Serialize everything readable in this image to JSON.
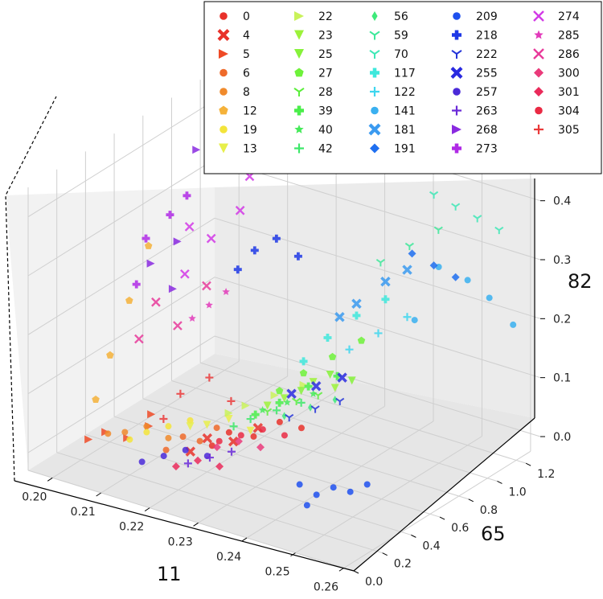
{
  "chart_data": {
    "type": "scatter",
    "projection": "3d",
    "title": "",
    "xlabel": "11",
    "ylabel": "65",
    "zlabel": "82",
    "xlim": [
      0.195,
      0.262
    ],
    "ylim": [
      0.0,
      1.3
    ],
    "zlim": [
      -0.03,
      0.45
    ],
    "xticks": [
      "0.20",
      "0.21",
      "0.22",
      "0.23",
      "0.24",
      "0.25",
      "0.26"
    ],
    "yticks": [
      "0.0",
      "0.2",
      "0.4",
      "0.6",
      "0.8",
      "1.0",
      "1.2"
    ],
    "zticks": [
      "0.0",
      "0.1",
      "0.2",
      "0.3",
      "0.4"
    ],
    "grid": true,
    "legend_position": "top-right",
    "series": [
      {
        "name": "0",
        "color": "#e8312a",
        "marker": "circle",
        "points": [
          [
            0.226,
            0.35,
            0.06
          ],
          [
            0.229,
            0.42,
            0.05
          ],
          [
            0.232,
            0.5,
            0.07
          ],
          [
            0.224,
            0.3,
            0.04
          ],
          [
            0.235,
            0.55,
            0.06
          ]
        ]
      },
      {
        "name": "4",
        "color": "#e8312a",
        "marker": "x-filled",
        "points": [
          [
            0.223,
            0.3,
            0.05
          ],
          [
            0.226,
            0.38,
            0.04
          ],
          [
            0.229,
            0.45,
            0.06
          ],
          [
            0.221,
            0.25,
            0.03
          ]
        ]
      },
      {
        "name": "5",
        "color": "#ef4a26",
        "marker": "triangle-right",
        "points": [
          [
            0.205,
            0.2,
            0.03
          ],
          [
            0.208,
            0.25,
            0.02
          ],
          [
            0.211,
            0.3,
            0.04
          ],
          [
            0.203,
            0.15,
            0.02
          ],
          [
            0.21,
            0.35,
            0.05
          ]
        ]
      },
      {
        "name": "6",
        "color": "#ee6a2a",
        "marker": "circle",
        "points": [
          [
            0.218,
            0.3,
            0.04
          ],
          [
            0.22,
            0.35,
            0.03
          ],
          [
            0.222,
            0.4,
            0.05
          ],
          [
            0.216,
            0.25,
            0.02
          ]
        ]
      },
      {
        "name": "8",
        "color": "#f08a2c",
        "marker": "circle",
        "points": [
          [
            0.209,
            0.2,
            0.04
          ],
          [
            0.212,
            0.25,
            0.05
          ],
          [
            0.215,
            0.3,
            0.03
          ],
          [
            0.207,
            0.15,
            0.04
          ]
        ]
      },
      {
        "name": "12",
        "color": "#f5b23a",
        "marker": "pentagon",
        "points": [
          [
            0.203,
            0.3,
            0.14
          ],
          [
            0.204,
            0.4,
            0.22
          ],
          [
            0.205,
            0.5,
            0.3
          ],
          [
            0.203,
            0.2,
            0.08
          ]
        ]
      },
      {
        "name": "19",
        "color": "#f3e43a",
        "marker": "circle",
        "points": [
          [
            0.212,
            0.25,
            0.04
          ],
          [
            0.215,
            0.3,
            0.05
          ],
          [
            0.218,
            0.35,
            0.06
          ],
          [
            0.21,
            0.2,
            0.03
          ]
        ]
      },
      {
        "name": "13",
        "color": "#e7ef4a",
        "marker": "triangle-down",
        "points": [
          [
            0.22,
            0.4,
            0.05
          ],
          [
            0.223,
            0.45,
            0.06
          ],
          [
            0.226,
            0.5,
            0.04
          ],
          [
            0.218,
            0.35,
            0.05
          ]
        ]
      },
      {
        "name": "22",
        "color": "#c9f25a",
        "marker": "triangle-right",
        "points": [
          [
            0.225,
            0.5,
            0.08
          ],
          [
            0.228,
            0.6,
            0.09
          ],
          [
            0.231,
            0.7,
            0.1
          ],
          [
            0.223,
            0.45,
            0.07
          ]
        ]
      },
      {
        "name": "23",
        "color": "#9cf23a",
        "marker": "triangle-down",
        "points": [
          [
            0.23,
            0.6,
            0.09
          ],
          [
            0.233,
            0.7,
            0.11
          ],
          [
            0.236,
            0.75,
            0.1
          ],
          [
            0.228,
            0.55,
            0.08
          ]
        ]
      },
      {
        "name": "25",
        "color": "#86f23a",
        "marker": "triangle-down",
        "points": [
          [
            0.232,
            0.65,
            0.1
          ],
          [
            0.235,
            0.75,
            0.12
          ],
          [
            0.238,
            0.8,
            0.11
          ]
        ]
      },
      {
        "name": "27",
        "color": "#6ef23a",
        "marker": "pentagon",
        "points": [
          [
            0.231,
            0.7,
            0.12
          ],
          [
            0.234,
            0.8,
            0.14
          ],
          [
            0.237,
            0.9,
            0.16
          ],
          [
            0.229,
            0.6,
            0.1
          ]
        ]
      },
      {
        "name": "28",
        "color": "#5aee3a",
        "marker": "tri-down",
        "points": [
          [
            0.228,
            0.55,
            0.07
          ],
          [
            0.231,
            0.65,
            0.08
          ],
          [
            0.234,
            0.7,
            0.09
          ]
        ]
      },
      {
        "name": "39",
        "color": "#4aee4a",
        "marker": "plus-filled",
        "points": [
          [
            0.229,
            0.6,
            0.08
          ],
          [
            0.232,
            0.7,
            0.1
          ],
          [
            0.235,
            0.8,
            0.11
          ],
          [
            0.227,
            0.5,
            0.07
          ]
        ]
      },
      {
        "name": "40",
        "color": "#46ea5a",
        "marker": "star",
        "points": [
          [
            0.227,
            0.55,
            0.07
          ],
          [
            0.23,
            0.62,
            0.08
          ],
          [
            0.233,
            0.7,
            0.09
          ]
        ]
      },
      {
        "name": "42",
        "color": "#3ee86a",
        "marker": "plus",
        "points": [
          [
            0.226,
            0.5,
            0.06
          ],
          [
            0.229,
            0.58,
            0.07
          ],
          [
            0.232,
            0.65,
            0.08
          ],
          [
            0.224,
            0.45,
            0.05
          ]
        ]
      },
      {
        "name": "56",
        "color": "#3eea7a",
        "marker": "diamond-thin",
        "points": [
          [
            0.23,
            0.6,
            0.06
          ],
          [
            0.233,
            0.68,
            0.07
          ],
          [
            0.236,
            0.75,
            0.08
          ]
        ]
      },
      {
        "name": "59",
        "color": "#3ee89a",
        "marker": "tri-down",
        "points": [
          [
            0.238,
            1.0,
            0.28
          ],
          [
            0.241,
            1.1,
            0.3
          ],
          [
            0.244,
            1.2,
            0.32
          ]
        ]
      },
      {
        "name": "70",
        "color": "#3ee8b6",
        "marker": "tri-down",
        "points": [
          [
            0.249,
            1.15,
            0.38
          ],
          [
            0.252,
            1.2,
            0.36
          ],
          [
            0.255,
            1.25,
            0.34
          ],
          [
            0.246,
            1.1,
            0.4
          ]
        ]
      },
      {
        "name": "117",
        "color": "#3ee8dc",
        "marker": "plus-filled",
        "points": [
          [
            0.233,
            0.8,
            0.17
          ],
          [
            0.236,
            0.9,
            0.2
          ],
          [
            0.239,
            1.0,
            0.22
          ],
          [
            0.231,
            0.7,
            0.14
          ]
        ]
      },
      {
        "name": "122",
        "color": "#3ed6ee",
        "marker": "plus",
        "points": [
          [
            0.236,
            0.85,
            0.15
          ],
          [
            0.239,
            0.95,
            0.17
          ],
          [
            0.242,
            1.05,
            0.19
          ]
        ]
      },
      {
        "name": "141",
        "color": "#3ab0f0",
        "marker": "circle",
        "points": [
          [
            0.25,
            1.2,
            0.25
          ],
          [
            0.253,
            1.25,
            0.22
          ],
          [
            0.257,
            1.28,
            0.18
          ],
          [
            0.247,
            1.1,
            0.28
          ],
          [
            0.245,
            1.0,
            0.2
          ]
        ]
      },
      {
        "name": "181",
        "color": "#3a9af0",
        "marker": "x-filled",
        "points": [
          [
            0.236,
            0.9,
            0.22
          ],
          [
            0.239,
            1.0,
            0.25
          ],
          [
            0.242,
            1.05,
            0.27
          ],
          [
            0.234,
            0.85,
            0.2
          ]
        ]
      },
      {
        "name": "191",
        "color": "#1f6ff0",
        "marker": "diamond",
        "points": [
          [
            0.246,
            1.1,
            0.28
          ],
          [
            0.249,
            1.15,
            0.26
          ],
          [
            0.243,
            1.05,
            0.3
          ]
        ]
      },
      {
        "name": "209",
        "color": "#1e50ee",
        "marker": "circle",
        "points": [
          [
            0.244,
            0.35,
            0.0
          ],
          [
            0.246,
            0.4,
            0.01
          ],
          [
            0.248,
            0.45,
            0.0
          ],
          [
            0.242,
            0.3,
            0.02
          ],
          [
            0.25,
            0.5,
            0.01
          ],
          [
            0.245,
            0.25,
            0.0
          ]
        ]
      },
      {
        "name": "218",
        "color": "#1e38e6",
        "marker": "plus-filled",
        "points": [
          [
            0.218,
            0.8,
            0.28
          ],
          [
            0.221,
            0.85,
            0.3
          ],
          [
            0.224,
            0.9,
            0.27
          ],
          [
            0.216,
            0.75,
            0.25
          ]
        ]
      },
      {
        "name": "222",
        "color": "#2434d8",
        "marker": "tri-down",
        "points": [
          [
            0.231,
            0.6,
            0.06
          ],
          [
            0.234,
            0.68,
            0.07
          ],
          [
            0.237,
            0.75,
            0.08
          ]
        ]
      },
      {
        "name": "255",
        "color": "#2a2ae0",
        "marker": "x-filled",
        "points": [
          [
            0.23,
            0.65,
            0.09
          ],
          [
            0.233,
            0.72,
            0.1
          ],
          [
            0.236,
            0.8,
            0.11
          ]
        ]
      },
      {
        "name": "257",
        "color": "#4a2ad8",
        "marker": "circle",
        "points": [
          [
            0.217,
            0.2,
            0.02
          ],
          [
            0.22,
            0.25,
            0.03
          ],
          [
            0.223,
            0.3,
            0.02
          ],
          [
            0.214,
            0.15,
            0.01
          ]
        ]
      },
      {
        "name": "263",
        "color": "#6a2ad8",
        "marker": "plus",
        "points": [
          [
            0.222,
            0.2,
            0.02
          ],
          [
            0.225,
            0.25,
            0.03
          ],
          [
            0.228,
            0.3,
            0.04
          ]
        ]
      },
      {
        "name": "268",
        "color": "#8a2ae0",
        "marker": "triangle-right",
        "points": [
          [
            0.206,
            0.8,
            0.42
          ],
          [
            0.208,
            0.6,
            0.3
          ],
          [
            0.21,
            0.5,
            0.24
          ],
          [
            0.204,
            0.55,
            0.26
          ]
        ]
      },
      {
        "name": "273",
        "color": "#b02ae6",
        "marker": "plus-filled",
        "points": [
          [
            0.203,
            0.55,
            0.3
          ],
          [
            0.205,
            0.65,
            0.33
          ],
          [
            0.207,
            0.7,
            0.36
          ],
          [
            0.204,
            0.45,
            0.24
          ]
        ]
      },
      {
        "name": "274",
        "color": "#d23ae6",
        "marker": "x",
        "points": [
          [
            0.209,
            0.65,
            0.32
          ],
          [
            0.212,
            0.7,
            0.3
          ],
          [
            0.215,
            0.8,
            0.34
          ],
          [
            0.211,
            0.55,
            0.26
          ],
          [
            0.214,
            0.9,
            0.38
          ]
        ]
      },
      {
        "name": "285",
        "color": "#e23aba",
        "marker": "star",
        "points": [
          [
            0.214,
            0.5,
            0.2
          ],
          [
            0.216,
            0.55,
            0.22
          ],
          [
            0.218,
            0.6,
            0.24
          ]
        ]
      },
      {
        "name": "286",
        "color": "#e83a9a",
        "marker": "x",
        "points": [
          [
            0.208,
            0.45,
            0.22
          ],
          [
            0.211,
            0.5,
            0.18
          ],
          [
            0.214,
            0.6,
            0.24
          ],
          [
            0.206,
            0.4,
            0.16
          ]
        ]
      },
      {
        "name": "300",
        "color": "#ea3a7a",
        "marker": "diamond",
        "points": [
          [
            0.225,
            0.3,
            0.04
          ],
          [
            0.228,
            0.35,
            0.05
          ],
          [
            0.231,
            0.4,
            0.04
          ]
        ]
      },
      {
        "name": "301",
        "color": "#ea2a5a",
        "marker": "diamond",
        "points": [
          [
            0.221,
            0.15,
            0.02
          ],
          [
            0.224,
            0.2,
            0.03
          ],
          [
            0.227,
            0.25,
            0.02
          ]
        ]
      },
      {
        "name": "304",
        "color": "#ea2a44",
        "marker": "circle",
        "points": [
          [
            0.227,
            0.4,
            0.05
          ],
          [
            0.23,
            0.45,
            0.06
          ],
          [
            0.233,
            0.5,
            0.05
          ],
          [
            0.224,
            0.35,
            0.04
          ]
        ]
      },
      {
        "name": "305",
        "color": "#ea3a3a",
        "marker": "plus",
        "points": [
          [
            0.216,
            0.35,
            0.1
          ],
          [
            0.219,
            0.45,
            0.12
          ],
          [
            0.222,
            0.5,
            0.08
          ],
          [
            0.214,
            0.3,
            0.06
          ]
        ]
      }
    ]
  }
}
